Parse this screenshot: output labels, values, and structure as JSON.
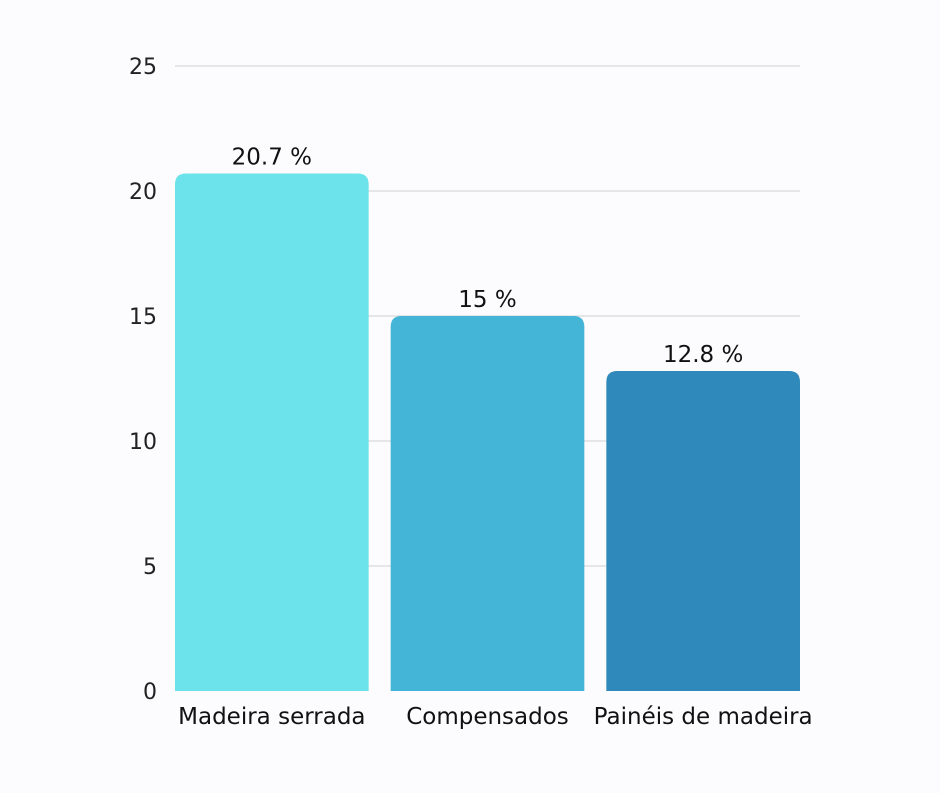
{
  "chart_data": {
    "type": "bar",
    "categories": [
      "Madeira serrada",
      "Compensados",
      "Painéis de madeira"
    ],
    "values": [
      20.7,
      15,
      12.8
    ],
    "value_labels": [
      "20.7 %",
      "15 %",
      "12.8 %"
    ],
    "title": "",
    "xlabel": "",
    "ylabel": "",
    "ylim": [
      0,
      25
    ],
    "yticks": [
      "0",
      "5",
      "10",
      "15",
      "20",
      "25"
    ],
    "grid": true,
    "legend": "none",
    "colors": [
      "#6ce3ea",
      "#44b5d7",
      "#2f89bb"
    ]
  }
}
